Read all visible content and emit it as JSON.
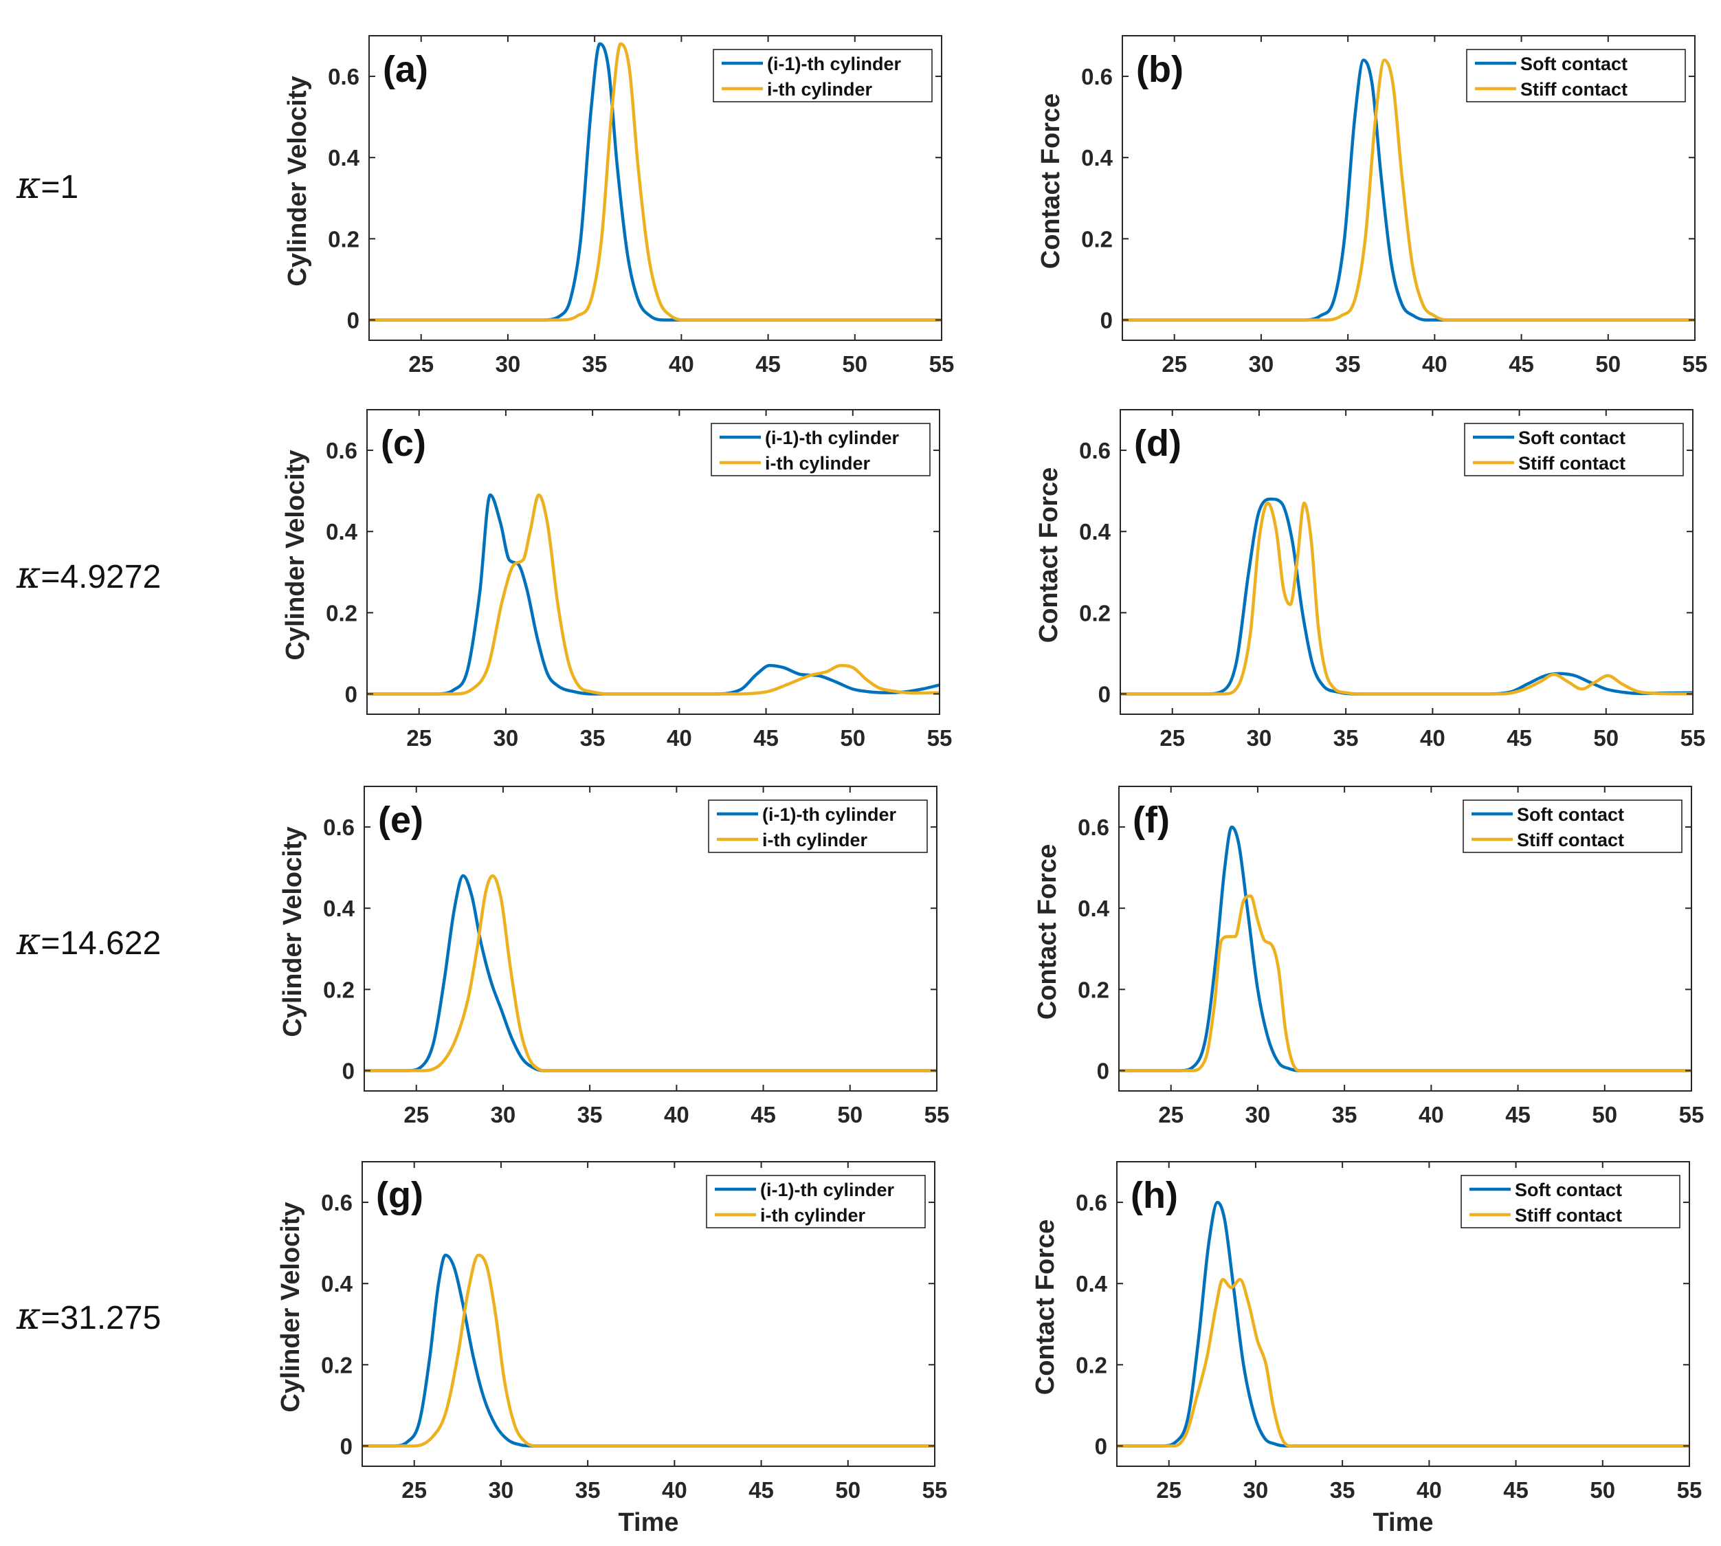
{
  "row_labels": [
    {
      "symbol": "κ",
      "text": "=1"
    },
    {
      "symbol": "κ",
      "text": "=4.9272"
    },
    {
      "symbol": "κ",
      "text": "=14.622"
    },
    {
      "symbol": "κ",
      "text": "=31.275"
    }
  ],
  "colors": {
    "blue": "#0072BD",
    "gold": "#EDB120",
    "axis": "#262626",
    "grid_tick": "#262626"
  },
  "chart_data": [
    {
      "type": "line",
      "panel": "(a)",
      "ylabel": "Cylinder Velocity",
      "xlabel": "",
      "xlim": [
        22,
        55
      ],
      "ylim": [
        -0.05,
        0.7
      ],
      "xticks": [
        25,
        30,
        35,
        40,
        45,
        50,
        55
      ],
      "xtick_labels": [
        "25",
        "30",
        "35",
        "40",
        "45",
        "50",
        "55"
      ],
      "yticks": [
        0,
        0.2,
        0.4,
        0.6
      ],
      "ytick_labels": [
        "0",
        "0.2",
        "0.4",
        "0.6"
      ],
      "legend_position": "top-right",
      "series": [
        {
          "name": "(i-1)-th cylinder",
          "color": "#0072BD",
          "x": [
            22,
            32,
            33,
            33.6,
            34.2,
            34.8,
            35.3,
            35.8,
            36.3,
            36.9,
            37.5,
            38.2,
            39,
            40,
            55
          ],
          "y": [
            0,
            0,
            0.01,
            0.05,
            0.2,
            0.52,
            0.68,
            0.62,
            0.38,
            0.16,
            0.05,
            0.01,
            0,
            0,
            0
          ]
        },
        {
          "name": "i-th cylinder",
          "color": "#EDB120",
          "x": [
            22,
            33,
            34,
            34.8,
            35.4,
            36,
            36.5,
            37,
            37.5,
            38.1,
            38.7,
            39.4,
            40.2,
            41,
            55
          ],
          "y": [
            0,
            0,
            0.01,
            0.05,
            0.2,
            0.52,
            0.68,
            0.62,
            0.38,
            0.16,
            0.05,
            0.01,
            0,
            0,
            0
          ]
        }
      ]
    },
    {
      "type": "line",
      "panel": "(b)",
      "ylabel": "Contact Force",
      "xlabel": "",
      "xlim": [
        22,
        55
      ],
      "ylim": [
        -0.05,
        0.7
      ],
      "xticks": [
        25,
        30,
        35,
        40,
        45,
        50,
        55
      ],
      "xtick_labels": [
        "25",
        "30",
        "35",
        "40",
        "45",
        "50",
        "55"
      ],
      "yticks": [
        0,
        0.2,
        0.4,
        0.6
      ],
      "ytick_labels": [
        "0",
        "0.2",
        "0.4",
        "0.6"
      ],
      "legend_position": "top-right",
      "series": [
        {
          "name": "Soft contact",
          "color": "#0072BD",
          "x": [
            22,
            32.5,
            33.4,
            34.2,
            34.8,
            35.4,
            35.9,
            36.4,
            36.9,
            37.5,
            38.1,
            38.8,
            39.5,
            40.2,
            55
          ],
          "y": [
            0,
            0,
            0.01,
            0.05,
            0.2,
            0.5,
            0.64,
            0.58,
            0.36,
            0.14,
            0.04,
            0.01,
            0,
            0,
            0
          ]
        },
        {
          "name": "Stiff contact",
          "color": "#EDB120",
          "x": [
            22,
            33.7,
            34.6,
            35.4,
            36,
            36.6,
            37.1,
            37.6,
            38.1,
            38.7,
            39.3,
            40,
            40.7,
            41.4,
            55
          ],
          "y": [
            0,
            0,
            0.01,
            0.05,
            0.2,
            0.5,
            0.64,
            0.58,
            0.36,
            0.14,
            0.04,
            0.01,
            0,
            0,
            0
          ]
        }
      ]
    },
    {
      "type": "line",
      "panel": "(c)",
      "ylabel": "Cylinder Velocity",
      "xlabel": "",
      "xlim": [
        22,
        55
      ],
      "ylim": [
        -0.05,
        0.7
      ],
      "xticks": [
        25,
        30,
        35,
        40,
        45,
        50,
        55
      ],
      "xtick_labels": [
        "25",
        "30",
        "35",
        "40",
        "45",
        "50",
        "55"
      ],
      "yticks": [
        0,
        0.2,
        0.4,
        0.6
      ],
      "ytick_labels": [
        "0",
        "0.2",
        "0.4",
        "0.6"
      ],
      "legend_position": "top-right",
      "series": [
        {
          "name": "(i-1)-th cylinder",
          "color": "#0072BD",
          "x": [
            22,
            26,
            27,
            27.8,
            28.5,
            29.1,
            29.7,
            30.2,
            30.7,
            31.2,
            31.8,
            32.4,
            33,
            34,
            35,
            42,
            43.5,
            44.5,
            45.2,
            46,
            47,
            48,
            49,
            50,
            51,
            52,
            53,
            54,
            55
          ],
          "y": [
            0,
            0,
            0.01,
            0.06,
            0.25,
            0.49,
            0.42,
            0.33,
            0.32,
            0.26,
            0.14,
            0.05,
            0.02,
            0.005,
            0,
            0,
            0.01,
            0.05,
            0.07,
            0.065,
            0.048,
            0.045,
            0.03,
            0.012,
            0.005,
            0.003,
            0.005,
            0.012,
            0.022
          ]
        },
        {
          "name": "i-th cylinder",
          "color": "#EDB120",
          "x": [
            22,
            27,
            28,
            29,
            29.8,
            30.5,
            31,
            31.4,
            31.9,
            32.4,
            33,
            33.6,
            34.2,
            35,
            36,
            43,
            45,
            46.5,
            47.5,
            48.5,
            49.3,
            50,
            50.8,
            51.5,
            52.5,
            53.5,
            55
          ],
          "y": [
            0,
            0,
            0.01,
            0.07,
            0.23,
            0.32,
            0.33,
            0.4,
            0.49,
            0.42,
            0.22,
            0.08,
            0.02,
            0.005,
            0,
            0,
            0.005,
            0.028,
            0.045,
            0.055,
            0.07,
            0.065,
            0.035,
            0.015,
            0.006,
            0.002,
            0.003
          ]
        }
      ]
    },
    {
      "type": "line",
      "panel": "(d)",
      "ylabel": "Contact Force",
      "xlabel": "",
      "xlim": [
        22,
        55
      ],
      "ylim": [
        -0.05,
        0.7
      ],
      "xticks": [
        25,
        30,
        35,
        40,
        45,
        50,
        55
      ],
      "xtick_labels": [
        "25",
        "30",
        "35",
        "40",
        "45",
        "50",
        "55"
      ],
      "yticks": [
        0,
        0.2,
        0.4,
        0.6
      ],
      "ytick_labels": [
        "0",
        "0.2",
        "0.4",
        "0.6"
      ],
      "legend_position": "top-right",
      "series": [
        {
          "name": "Soft contact",
          "color": "#0072BD",
          "x": [
            22,
            27,
            28,
            28.7,
            29.4,
            30,
            30.7,
            31.3,
            31.9,
            32.5,
            33.1,
            33.7,
            34.5,
            35.5,
            43,
            44.5,
            45.5,
            46.5,
            47.3,
            48.2,
            49,
            50,
            51,
            52,
            53,
            55
          ],
          "y": [
            0,
            0,
            0.01,
            0.08,
            0.3,
            0.45,
            0.48,
            0.47,
            0.38,
            0.2,
            0.07,
            0.02,
            0.005,
            0,
            0,
            0.005,
            0.025,
            0.045,
            0.05,
            0.045,
            0.03,
            0.012,
            0.004,
            0.001,
            0.002,
            0.003
          ]
        },
        {
          "name": "Stiff contact",
          "color": "#EDB120",
          "x": [
            22,
            28,
            28.8,
            29.5,
            30,
            30.5,
            31,
            31.4,
            31.8,
            32.2,
            32.6,
            33,
            33.4,
            33.8,
            34.3,
            35,
            36,
            44,
            45.2,
            46.2,
            47,
            47.8,
            48.6,
            49.4,
            50.1,
            50.9,
            51.7,
            52.5,
            55
          ],
          "y": [
            0,
            0,
            0.02,
            0.15,
            0.38,
            0.47,
            0.4,
            0.26,
            0.22,
            0.33,
            0.47,
            0.38,
            0.17,
            0.06,
            0.015,
            0.003,
            0,
            0,
            0.01,
            0.03,
            0.048,
            0.03,
            0.012,
            0.03,
            0.045,
            0.025,
            0.008,
            0.002,
            0
          ]
        }
      ]
    },
    {
      "type": "line",
      "panel": "(e)",
      "ylabel": "Cylinder Velocity",
      "xlabel": "",
      "xlim": [
        22,
        55
      ],
      "ylim": [
        -0.05,
        0.7
      ],
      "xticks": [
        25,
        30,
        35,
        40,
        45,
        50,
        55
      ],
      "xtick_labels": [
        "25",
        "30",
        "35",
        "40",
        "45",
        "50",
        "55"
      ],
      "yticks": [
        0,
        0.2,
        0.4,
        0.6
      ],
      "ytick_labels": [
        "0",
        "0.2",
        "0.4",
        "0.6"
      ],
      "legend_position": "top-right",
      "series": [
        {
          "name": "(i-1)-th cylinder",
          "color": "#0072BD",
          "x": [
            22,
            24.5,
            25.3,
            26,
            26.6,
            27.2,
            27.7,
            28.2,
            28.7,
            29.3,
            29.9,
            30.5,
            31.1,
            31.7,
            32.3,
            55
          ],
          "y": [
            0,
            0,
            0.01,
            0.07,
            0.22,
            0.4,
            0.48,
            0.43,
            0.32,
            0.22,
            0.15,
            0.08,
            0.03,
            0.008,
            0,
            0
          ]
        },
        {
          "name": "i-th cylinder",
          "color": "#EDB120",
          "x": [
            22,
            25.5,
            26.5,
            27.3,
            28,
            28.5,
            29,
            29.4,
            29.9,
            30.4,
            31,
            31.5,
            32,
            32.5,
            55
          ],
          "y": [
            0,
            0,
            0.02,
            0.08,
            0.18,
            0.3,
            0.44,
            0.48,
            0.42,
            0.26,
            0.1,
            0.03,
            0.005,
            0,
            0
          ]
        }
      ]
    },
    {
      "type": "line",
      "panel": "(f)",
      "ylabel": "Contact Force",
      "xlabel": "",
      "xlim": [
        22,
        55
      ],
      "ylim": [
        -0.05,
        0.7
      ],
      "xticks": [
        25,
        30,
        35,
        40,
        45,
        50,
        55
      ],
      "xtick_labels": [
        "25",
        "30",
        "35",
        "40",
        "45",
        "50",
        "55"
      ],
      "yticks": [
        0,
        0.2,
        0.4,
        0.6
      ],
      "ytick_labels": [
        "0",
        "0.2",
        "0.4",
        "0.6"
      ],
      "legend_position": "top-right",
      "series": [
        {
          "name": "Soft contact",
          "color": "#0072BD",
          "x": [
            22,
            25.5,
            26.3,
            27,
            27.6,
            28.1,
            28.5,
            28.9,
            29.4,
            30,
            30.6,
            31.2,
            31.8,
            32.4,
            55
          ],
          "y": [
            0,
            0,
            0.01,
            0.08,
            0.28,
            0.5,
            0.6,
            0.56,
            0.4,
            0.2,
            0.08,
            0.02,
            0.005,
            0,
            0
          ]
        },
        {
          "name": "Stiff contact",
          "color": "#EDB120",
          "x": [
            22,
            26.2,
            27,
            27.5,
            27.9,
            28.3,
            28.7,
            29.2,
            29.6,
            30,
            30.4,
            30.8,
            31.2,
            31.6,
            32,
            32.5,
            55
          ],
          "y": [
            0,
            0,
            0.03,
            0.16,
            0.32,
            0.33,
            0.33,
            0.42,
            0.43,
            0.37,
            0.32,
            0.31,
            0.25,
            0.1,
            0.02,
            0,
            0
          ]
        }
      ]
    },
    {
      "type": "line",
      "panel": "(g)",
      "ylabel": "Cylinder Velocity",
      "xlabel": "Time",
      "xlim": [
        22,
        55
      ],
      "ylim": [
        -0.05,
        0.7
      ],
      "xticks": [
        25,
        30,
        35,
        40,
        45,
        50,
        55
      ],
      "xtick_labels": [
        "25",
        "30",
        "35",
        "40",
        "45",
        "50",
        "55"
      ],
      "yticks": [
        0,
        0.2,
        0.4,
        0.6
      ],
      "ytick_labels": [
        "0",
        "0.2",
        "0.4",
        "0.6"
      ],
      "legend_position": "top-right",
      "series": [
        {
          "name": "(i-1)-th cylinder",
          "color": "#0072BD",
          "x": [
            22,
            23.8,
            24.6,
            25.3,
            25.9,
            26.4,
            26.8,
            27.3,
            27.8,
            28.4,
            29,
            29.7,
            30.4,
            31.1,
            31.8,
            55
          ],
          "y": [
            0,
            0,
            0.01,
            0.06,
            0.22,
            0.4,
            0.47,
            0.44,
            0.35,
            0.22,
            0.12,
            0.05,
            0.015,
            0.003,
            0,
            0
          ]
        },
        {
          "name": "i-th cylinder",
          "color": "#EDB120",
          "x": [
            22,
            25,
            26,
            26.8,
            27.5,
            28.1,
            28.7,
            29.2,
            29.7,
            30.2,
            30.8,
            31.4,
            32,
            55
          ],
          "y": [
            0,
            0,
            0.02,
            0.08,
            0.22,
            0.38,
            0.47,
            0.44,
            0.32,
            0.16,
            0.05,
            0.01,
            0,
            0
          ]
        }
      ]
    },
    {
      "type": "line",
      "panel": "(h)",
      "ylabel": "Contact Force",
      "xlabel": "Time",
      "xlim": [
        22,
        55
      ],
      "ylim": [
        -0.05,
        0.7
      ],
      "xticks": [
        25,
        30,
        35,
        40,
        45,
        50,
        55
      ],
      "xtick_labels": [
        "25",
        "30",
        "35",
        "40",
        "45",
        "50",
        "55"
      ],
      "yticks": [
        0,
        0.2,
        0.4,
        0.6
      ],
      "ytick_labels": [
        "0",
        "0.2",
        "0.4",
        "0.6"
      ],
      "legend_position": "top-right",
      "series": [
        {
          "name": "Soft contact",
          "color": "#0072BD",
          "x": [
            22,
            24.6,
            25.4,
            26.1,
            26.7,
            27.3,
            27.8,
            28.2,
            28.7,
            29.3,
            29.9,
            30.5,
            31.1,
            31.8,
            55
          ],
          "y": [
            0,
            0,
            0.01,
            0.07,
            0.26,
            0.5,
            0.6,
            0.56,
            0.4,
            0.2,
            0.08,
            0.02,
            0.005,
            0,
            0
          ]
        },
        {
          "name": "Stiff contact",
          "color": "#EDB120",
          "x": [
            22,
            25.3,
            26,
            26.6,
            27.2,
            27.7,
            28.1,
            28.6,
            29.1,
            29.6,
            30.1,
            30.6,
            31,
            31.5,
            32,
            55
          ],
          "y": [
            0,
            0,
            0.03,
            0.12,
            0.22,
            0.34,
            0.41,
            0.39,
            0.41,
            0.35,
            0.26,
            0.2,
            0.1,
            0.02,
            0,
            0
          ]
        }
      ]
    }
  ]
}
